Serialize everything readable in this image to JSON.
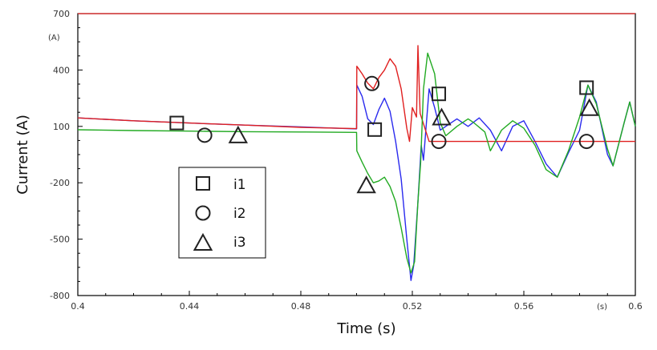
{
  "chart_data": {
    "type": "line",
    "xlabel": "Time (s)",
    "ylabel": "Current (A)",
    "x_unit": "(s)",
    "y_unit": "(A)",
    "xlim": [
      0.4,
      0.6
    ],
    "ylim": [
      -800,
      700
    ],
    "x_ticks": [
      "0.4",
      "0.44",
      "0.48",
      "0.52",
      "0.56",
      "0.6"
    ],
    "x_tick_values": [
      0.4,
      0.44,
      0.48,
      0.52,
      0.56,
      0.6
    ],
    "y_ticks": [
      "700",
      "400",
      "100",
      "-200",
      "-500",
      "-800"
    ],
    "y_tick_values": [
      700,
      400,
      100,
      -200,
      -500,
      -800
    ],
    "grid": false,
    "legend_position": "bottom-left",
    "series": [
      {
        "name": "i1",
        "marker": "square",
        "color": "#2a2aee",
        "points": [
          [
            0.4,
            145
          ],
          [
            0.42,
            130
          ],
          [
            0.44,
            118
          ],
          [
            0.46,
            107
          ],
          [
            0.48,
            97
          ],
          [
            0.5,
            87
          ],
          [
            0.5001,
            320
          ],
          [
            0.502,
            260
          ],
          [
            0.504,
            140
          ],
          [
            0.506,
            110
          ],
          [
            0.508,
            190
          ],
          [
            0.51,
            250
          ],
          [
            0.512,
            180
          ],
          [
            0.514,
            20
          ],
          [
            0.516,
            -180
          ],
          [
            0.518,
            -500
          ],
          [
            0.5195,
            -720
          ],
          [
            0.5205,
            -640
          ],
          [
            0.522,
            -300
          ],
          [
            0.5232,
            0
          ],
          [
            0.524,
            -80
          ],
          [
            0.526,
            300
          ],
          [
            0.528,
            200
          ],
          [
            0.53,
            80
          ],
          [
            0.532,
            100
          ],
          [
            0.536,
            140
          ],
          [
            0.54,
            100
          ],
          [
            0.544,
            145
          ],
          [
            0.548,
            80
          ],
          [
            0.552,
            -30
          ],
          [
            0.556,
            100
          ],
          [
            0.56,
            130
          ],
          [
            0.564,
            20
          ],
          [
            0.568,
            -100
          ],
          [
            0.572,
            -170
          ],
          [
            0.576,
            -40
          ],
          [
            0.58,
            80
          ],
          [
            0.583,
            320
          ],
          [
            0.586,
            230
          ],
          [
            0.59,
            -50
          ],
          [
            0.592,
            -110
          ],
          [
            0.596,
            120
          ],
          [
            0.598,
            230
          ],
          [
            0.6,
            100
          ]
        ]
      },
      {
        "name": "i2",
        "marker": "circle",
        "color": "#e02020",
        "points": [
          [
            0.4,
            145
          ],
          [
            0.42,
            130
          ],
          [
            0.44,
            118
          ],
          [
            0.46,
            107
          ],
          [
            0.48,
            95
          ],
          [
            0.5,
            88
          ],
          [
            0.5001,
            420
          ],
          [
            0.502,
            380
          ],
          [
            0.504,
            330
          ],
          [
            0.506,
            300
          ],
          [
            0.508,
            360
          ],
          [
            0.51,
            400
          ],
          [
            0.512,
            460
          ],
          [
            0.514,
            420
          ],
          [
            0.516,
            300
          ],
          [
            0.518,
            90
          ],
          [
            0.519,
            20
          ],
          [
            0.52,
            200
          ],
          [
            0.5215,
            150
          ],
          [
            0.522,
            530
          ],
          [
            0.5228,
            170
          ],
          [
            0.526,
            20
          ],
          [
            0.53,
            20
          ],
          [
            0.54,
            20
          ],
          [
            0.56,
            20
          ],
          [
            0.58,
            20
          ],
          [
            0.6,
            20
          ]
        ]
      },
      {
        "name": "i3",
        "marker": "triangle",
        "color": "#22aa22",
        "points": [
          [
            0.4,
            82
          ],
          [
            0.42,
            78
          ],
          [
            0.44,
            75
          ],
          [
            0.46,
            72
          ],
          [
            0.48,
            70
          ],
          [
            0.5,
            68
          ],
          [
            0.5001,
            -30
          ],
          [
            0.502,
            -90
          ],
          [
            0.504,
            -150
          ],
          [
            0.506,
            -200
          ],
          [
            0.508,
            -190
          ],
          [
            0.51,
            -170
          ],
          [
            0.512,
            -220
          ],
          [
            0.514,
            -300
          ],
          [
            0.516,
            -440
          ],
          [
            0.518,
            -600
          ],
          [
            0.5195,
            -680
          ],
          [
            0.5208,
            -620
          ],
          [
            0.522,
            -300
          ],
          [
            0.523,
            -90
          ],
          [
            0.524,
            300
          ],
          [
            0.5255,
            490
          ],
          [
            0.528,
            380
          ],
          [
            0.53,
            120
          ],
          [
            0.532,
            50
          ],
          [
            0.536,
            100
          ],
          [
            0.54,
            140
          ],
          [
            0.542,
            120
          ],
          [
            0.546,
            70
          ],
          [
            0.548,
            -30
          ],
          [
            0.552,
            80
          ],
          [
            0.556,
            130
          ],
          [
            0.56,
            90
          ],
          [
            0.564,
            0
          ],
          [
            0.568,
            -130
          ],
          [
            0.572,
            -170
          ],
          [
            0.576,
            -30
          ],
          [
            0.58,
            150
          ],
          [
            0.583,
            320
          ],
          [
            0.586,
            220
          ],
          [
            0.59,
            -20
          ],
          [
            0.592,
            -110
          ],
          [
            0.596,
            120
          ],
          [
            0.598,
            230
          ],
          [
            0.6,
            100
          ]
        ]
      }
    ],
    "series_markers": [
      {
        "series": "i1",
        "points": [
          [
            0.4355,
            118
          ],
          [
            0.5065,
            83
          ],
          [
            0.5295,
            273
          ],
          [
            0.5825,
            306
          ]
        ]
      },
      {
        "series": "i2",
        "points": [
          [
            0.4455,
            53
          ],
          [
            0.5055,
            328
          ],
          [
            0.5295,
            20
          ],
          [
            0.5825,
            20
          ]
        ]
      },
      {
        "series": "i3",
        "points": [
          [
            0.4575,
            53
          ],
          [
            0.5035,
            -213
          ],
          [
            0.5305,
            148
          ],
          [
            0.5835,
            198
          ]
        ]
      }
    ]
  }
}
